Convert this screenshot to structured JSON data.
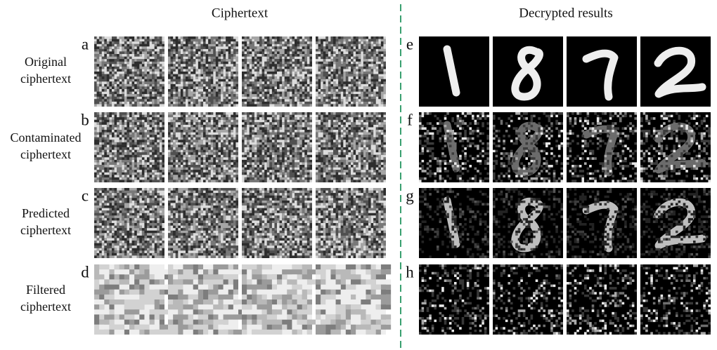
{
  "left": {
    "title": "Ciphertext",
    "rows": [
      {
        "letter": "a",
        "label": [
          "Original",
          "ciphertext"
        ]
      },
      {
        "letter": "b",
        "label": [
          "Contaminated",
          "ciphertext"
        ]
      },
      {
        "letter": "c",
        "label": [
          "Predicted",
          "ciphertext"
        ]
      },
      {
        "letter": "d",
        "label": [
          "Filtered",
          "ciphertext"
        ]
      }
    ]
  },
  "right": {
    "title": "Decrypted results",
    "rows": [
      {
        "letter": "e"
      },
      {
        "letter": "f"
      },
      {
        "letter": "g"
      },
      {
        "letter": "h"
      }
    ]
  }
}
